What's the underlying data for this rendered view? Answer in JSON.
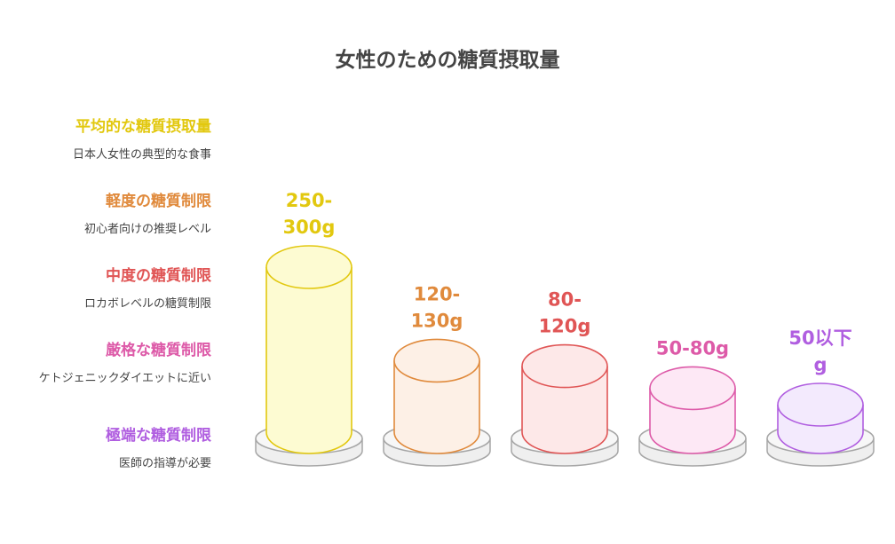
{
  "title": "女性のための糖質摂取量",
  "chart_data": {
    "type": "bar",
    "title": "女性のための糖質摂取量",
    "categories": [
      "平均的な糖質摂取量",
      "軽度の糖質制限",
      "中度の糖質制限",
      "厳格な糖質制限",
      "極端な糖質制限"
    ],
    "descriptions": [
      "日本人女性の典型的な食事",
      "初心者向けの推奨レベル",
      "ロカボレベルの糖質制限",
      "ケトジェニックダイエットに近い",
      "医師の指導が必要"
    ],
    "value_labels": [
      [
        "250-",
        "300g"
      ],
      [
        "120-",
        "130g"
      ],
      [
        "80-",
        "120g"
      ],
      [
        "50-80g"
      ],
      [
        "50以下",
        "g"
      ]
    ],
    "values_g_range": [
      [
        250,
        300
      ],
      [
        120,
        130
      ],
      [
        80,
        120
      ],
      [
        50,
        80
      ],
      [
        0,
        50
      ]
    ],
    "colors": [
      "#e2c80f",
      "#e08a3c",
      "#e05555",
      "#dd5aa8",
      "#b05ee0"
    ],
    "fills": [
      "#fdfbd2",
      "#fdf0e6",
      "#fde8e8",
      "#fde8f5",
      "#f3eafd"
    ]
  }
}
